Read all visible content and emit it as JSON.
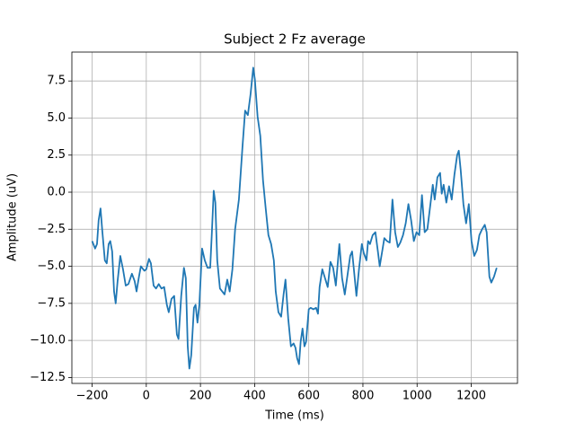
{
  "chart_data": {
    "type": "line",
    "title": "Subject 2 Fz average",
    "xlabel": "Time (ms)",
    "ylabel": "Amplitude (uV)",
    "color": "#1f77b4",
    "grid": true,
    "x": [
      -200,
      -189,
      -182,
      -176,
      -169,
      -163,
      -153,
      -146,
      -139,
      -133,
      -126,
      -119,
      -113,
      -106,
      -96,
      -86,
      -76,
      -66,
      -53,
      -43,
      -36,
      -27,
      -20,
      -7,
      0,
      10,
      17,
      27,
      36,
      46,
      56,
      66,
      76,
      83,
      93,
      103,
      113,
      119,
      129,
      139,
      146,
      153,
      159,
      166,
      176,
      182,
      189,
      196,
      206,
      216,
      226,
      236,
      242,
      249,
      255,
      262,
      272,
      289,
      299,
      308,
      318,
      328,
      342,
      355,
      365,
      375,
      385,
      395,
      401,
      411,
      421,
      431,
      441,
      451,
      461,
      471,
      478,
      488,
      498,
      507,
      514,
      524,
      534,
      544,
      551,
      557,
      564,
      570,
      577,
      584,
      590,
      600,
      607,
      617,
      627,
      634,
      640,
      650,
      660,
      670,
      680,
      690,
      700,
      713,
      723,
      733,
      743,
      753,
      760,
      766,
      776,
      786,
      796,
      803,
      813,
      819,
      826,
      836,
      846,
      856,
      862,
      872,
      879,
      889,
      899,
      909,
      919,
      929,
      938,
      948,
      958,
      968,
      978,
      988,
      998,
      1008,
      1018,
      1028,
      1038,
      1048,
      1058,
      1065,
      1075,
      1085,
      1091,
      1098,
      1108,
      1118,
      1128,
      1138,
      1148,
      1154,
      1161,
      1171,
      1181,
      1191,
      1201,
      1211,
      1221,
      1230,
      1240,
      1250,
      1257,
      1267,
      1274,
      1284,
      1294
    ],
    "values": [
      -3.3,
      -3.8,
      -3.5,
      -1.9,
      -1.1,
      -2.5,
      -4.6,
      -4.8,
      -3.5,
      -3.3,
      -4.0,
      -6.7,
      -7.5,
      -6.0,
      -4.3,
      -5.2,
      -6.3,
      -6.2,
      -5.5,
      -6.0,
      -6.7,
      -5.7,
      -5.0,
      -5.3,
      -5.2,
      -4.5,
      -4.8,
      -6.3,
      -6.5,
      -6.2,
      -6.5,
      -6.4,
      -7.6,
      -8.1,
      -7.2,
      -7.0,
      -9.6,
      -9.9,
      -7.0,
      -5.1,
      -5.8,
      -10.4,
      -11.9,
      -11.0,
      -7.8,
      -7.6,
      -8.8,
      -7.6,
      -3.8,
      -4.6,
      -5.1,
      -5.1,
      -2.8,
      0.1,
      -0.7,
      -4.6,
      -6.5,
      -6.9,
      -5.9,
      -6.7,
      -5.2,
      -2.5,
      -0.5,
      3.0,
      5.5,
      5.2,
      6.6,
      8.4,
      7.6,
      5.1,
      3.8,
      0.8,
      -1.1,
      -2.9,
      -3.5,
      -4.6,
      -6.7,
      -8.1,
      -8.4,
      -6.9,
      -5.9,
      -8.5,
      -10.4,
      -10.2,
      -10.5,
      -11.2,
      -11.6,
      -10.1,
      -9.2,
      -10.4,
      -10.1,
      -7.9,
      -7.8,
      -7.9,
      -7.8,
      -8.2,
      -6.4,
      -5.2,
      -5.8,
      -6.4,
      -4.7,
      -5.1,
      -6.3,
      -3.5,
      -5.8,
      -6.9,
      -5.6,
      -4.3,
      -4.0,
      -5.1,
      -7.0,
      -5.1,
      -3.5,
      -4.1,
      -4.6,
      -3.3,
      -3.5,
      -2.9,
      -2.7,
      -4.1,
      -5.0,
      -3.9,
      -3.1,
      -3.3,
      -3.4,
      -0.5,
      -2.7,
      -3.7,
      -3.4,
      -2.9,
      -2.1,
      -0.8,
      -1.9,
      -3.3,
      -2.7,
      -2.9,
      -0.2,
      -2.7,
      -2.5,
      -1.0,
      0.5,
      -0.5,
      1.0,
      1.3,
      -0.1,
      0.5,
      -0.7,
      0.4,
      -0.5,
      1.2,
      2.5,
      2.8,
      1.5,
      -0.8,
      -2.1,
      -0.8,
      -3.3,
      -4.3,
      -3.9,
      -2.9,
      -2.5,
      -2.2,
      -2.7,
      -5.7,
      -6.1,
      -5.7,
      -5.1
    ],
    "xlim": [
      -274.8,
      1370.8
    ],
    "xticks": [
      {
        "value": -200,
        "label": "−200"
      },
      0,
      200,
      400,
      600,
      800,
      1000,
      1200
    ],
    "ylim": [
      -12.9,
      9.45
    ],
    "yticks": [
      {
        "value": -12.5,
        "label": "−12.5"
      },
      {
        "value": -10,
        "label": "−10.0"
      },
      {
        "value": -7.5,
        "label": "−7.5"
      },
      {
        "value": -5,
        "label": "−5.0"
      },
      {
        "value": -2.5,
        "label": "−2.5"
      },
      {
        "value": 0,
        "label": "0.0"
      },
      2.5,
      {
        "value": 5,
        "label": "5.0"
      },
      7.5
    ]
  }
}
